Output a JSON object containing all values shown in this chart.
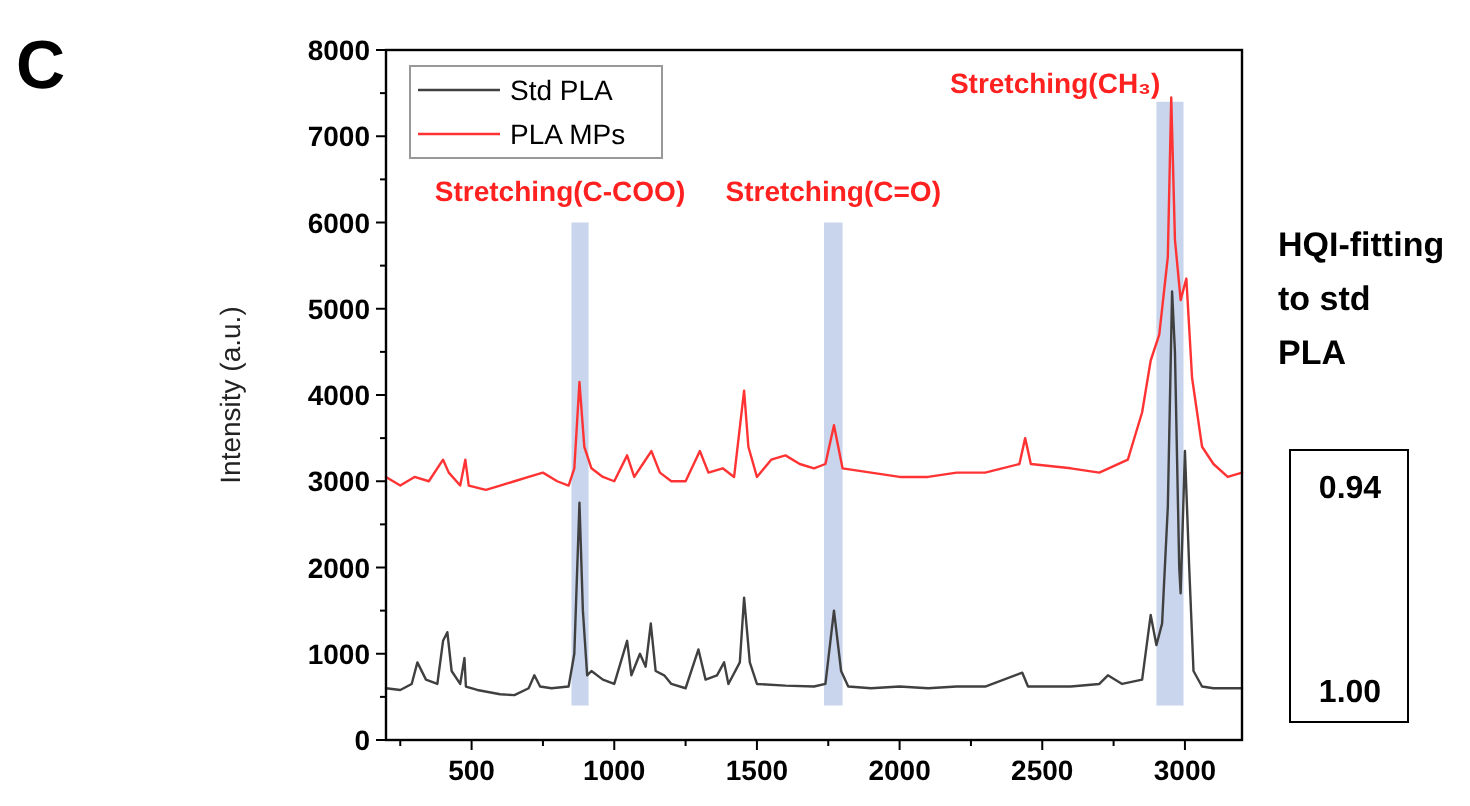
{
  "chart_data": {
    "type": "line",
    "ylabel": "Intensity (a.u.)",
    "xlim": [
      200,
      3200
    ],
    "ylim": [
      0,
      8000
    ],
    "xticks": [
      {
        "value": 250,
        "label": null
      },
      500,
      {
        "value": 750,
        "label": null
      },
      1000,
      {
        "value": 1250,
        "label": null
      },
      1500,
      {
        "value": 1750,
        "label": null
      },
      2000,
      {
        "value": 2250,
        "label": null
      },
      2500,
      {
        "value": 2750,
        "label": null
      },
      3000
    ],
    "yticks": [
      0,
      {
        "value": 500,
        "label": null
      },
      1000,
      {
        "value": 1500,
        "label": null
      },
      2000,
      {
        "value": 2500,
        "label": null
      },
      3000,
      {
        "value": 3500,
        "label": null
      },
      4000,
      {
        "value": 4500,
        "label": null
      },
      5000,
      {
        "value": 5500,
        "label": null
      },
      6000,
      {
        "value": 6500,
        "label": null
      },
      7000,
      {
        "value": 7500,
        "label": null
      },
      8000
    ],
    "grid": false,
    "legend": "top left",
    "marker": "none",
    "line_style": "solid",
    "bands": [
      {
        "axis": "x",
        "from": 850,
        "to": 910,
        "label": "Stretching(C-COO)",
        "color": "#c9d5ec"
      },
      {
        "axis": "x",
        "from": 1735,
        "to": 1800,
        "label": "Stretching(C=O)",
        "color": "#c9d5ec"
      },
      {
        "axis": "x",
        "from": 2900,
        "to": 2995,
        "label": "Stretching(CH₃)",
        "color": "#c9d5ec"
      }
    ],
    "annotations": [
      "C",
      "HQI-fitting to std PLA",
      "0.94",
      "1.00"
    ],
    "x": [
      200,
      250,
      290,
      310,
      340,
      380,
      400,
      415,
      430,
      460,
      475,
      480,
      520,
      600,
      650,
      700,
      720,
      740,
      780,
      840,
      860,
      878,
      890,
      905,
      920,
      960,
      1000,
      1045,
      1060,
      1090,
      1110,
      1128,
      1145,
      1175,
      1200,
      1250,
      1295,
      1320,
      1360,
      1385,
      1400,
      1440,
      1455,
      1475,
      1500,
      1600,
      1700,
      1740,
      1770,
      1795,
      1820,
      1900,
      2000,
      2100,
      2200,
      2300,
      2430,
      2450,
      2600,
      2700,
      2730,
      2780,
      2850,
      2880,
      2900,
      2920,
      2940,
      2955,
      2965,
      2980,
      2985,
      3000,
      3015,
      3030,
      3060,
      3100,
      3200
    ],
    "series": [
      {
        "name": "Std PLA",
        "color": "#404040",
        "values": [
          600,
          580,
          650,
          900,
          700,
          650,
          1150,
          1250,
          800,
          650,
          950,
          620,
          580,
          530,
          520,
          600,
          750,
          620,
          600,
          620,
          1000,
          2750,
          1500,
          750,
          800,
          700,
          650,
          1150,
          750,
          1000,
          850,
          1350,
          800,
          750,
          650,
          600,
          1050,
          700,
          750,
          900,
          650,
          900,
          1650,
          900,
          650,
          630,
          620,
          650,
          1500,
          800,
          620,
          600,
          620,
          600,
          620,
          620,
          780,
          620,
          620,
          650,
          750,
          650,
          700,
          1450,
          1100,
          1350,
          2700,
          5200,
          4500,
          2000,
          1700,
          3350,
          2000,
          800,
          620,
          600,
          600
        ]
      },
      {
        "name": "PLA MPs",
        "color": "#ff3333",
        "x": [
          200,
          250,
          300,
          350,
          400,
          420,
          460,
          478,
          490,
          550,
          600,
          650,
          700,
          750,
          800,
          840,
          860,
          878,
          895,
          920,
          960,
          1000,
          1045,
          1070,
          1100,
          1130,
          1160,
          1200,
          1250,
          1300,
          1330,
          1380,
          1420,
          1455,
          1470,
          1500,
          1550,
          1600,
          1650,
          1700,
          1740,
          1770,
          1800,
          1900,
          2000,
          2100,
          2200,
          2300,
          2420,
          2440,
          2460,
          2600,
          2700,
          2800,
          2850,
          2880,
          2910,
          2940,
          2952,
          2965,
          2985,
          3005,
          3025,
          3060,
          3100,
          3150,
          3200
        ],
        "values": [
          3050,
          2950,
          3050,
          3000,
          3250,
          3100,
          2950,
          3250,
          2950,
          2900,
          2950,
          3000,
          3050,
          3100,
          3000,
          2950,
          3150,
          4150,
          3400,
          3150,
          3050,
          3000,
          3300,
          3050,
          3200,
          3350,
          3100,
          3000,
          3000,
          3350,
          3100,
          3150,
          3050,
          4050,
          3400,
          3050,
          3250,
          3300,
          3200,
          3150,
          3200,
          3650,
          3150,
          3100,
          3050,
          3050,
          3100,
          3100,
          3200,
          3500,
          3200,
          3150,
          3100,
          3250,
          3800,
          4400,
          4700,
          5600,
          7450,
          5800,
          5100,
          5350,
          4200,
          3400,
          3200,
          3050,
          3100
        ]
      }
    ]
  }
}
